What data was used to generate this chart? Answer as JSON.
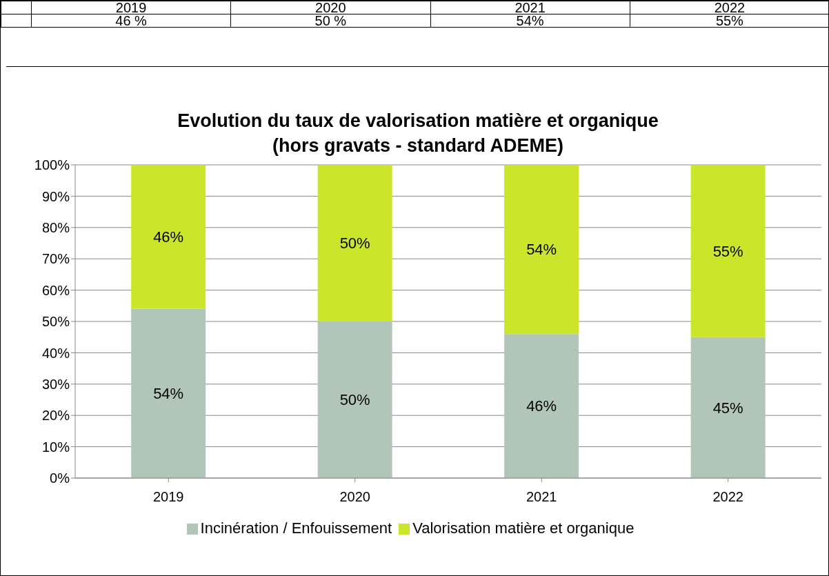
{
  "chart_data": {
    "type": "bar",
    "stacked": true,
    "title": "Evolution du taux de valorisation matière et organique",
    "subtitle": "(hors gravats - standard ADEME)",
    "categories": [
      "2019",
      "2020",
      "2021",
      "2022"
    ],
    "series": [
      {
        "name": "Incinération / Enfouissement",
        "color": "#b1c5b9",
        "values": [
          54,
          50,
          46,
          45
        ],
        "value_labels": [
          "54%",
          "50%",
          "46%",
          "45%"
        ]
      },
      {
        "name": "Valorisation matière et organique",
        "color": "#cbe62a",
        "values": [
          46,
          50,
          54,
          55
        ],
        "value_labels": [
          "46%",
          "50%",
          "54%",
          "55%"
        ]
      }
    ],
    "annotations": [
      "46 %",
      "50 %",
      "54%",
      "55%"
    ],
    "ylim": [
      0,
      100
    ],
    "yticks": [
      {
        "value": 0,
        "label": "0%"
      },
      {
        "value": 10,
        "label": "10%"
      },
      {
        "value": 20,
        "label": "20%"
      },
      {
        "value": 30,
        "label": "30%"
      },
      {
        "value": 40,
        "label": "40%"
      },
      {
        "value": 50,
        "label": "50%"
      },
      {
        "value": 60,
        "label": "60%"
      },
      {
        "value": 70,
        "label": "70%"
      },
      {
        "value": 80,
        "label": "80%"
      },
      {
        "value": 90,
        "label": "90%"
      },
      {
        "value": 100,
        "label": "100%"
      }
    ],
    "grid": "y",
    "legend": "bottom"
  }
}
